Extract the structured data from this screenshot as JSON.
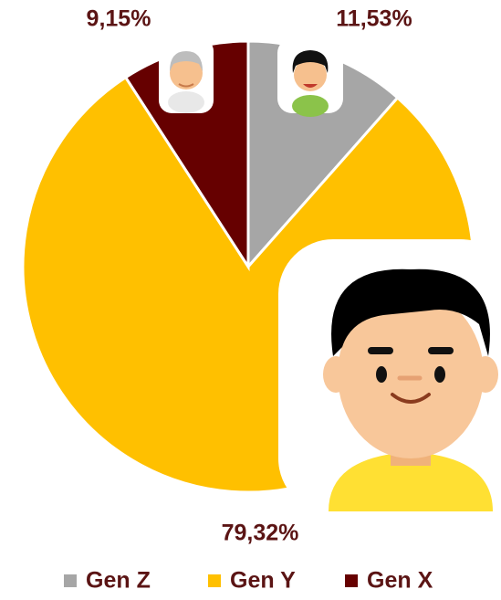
{
  "chart_data": {
    "type": "pie",
    "categories": [
      "Gen Z",
      "Gen Y",
      "Gen X"
    ],
    "values": [
      11.53,
      79.32,
      9.15
    ],
    "value_labels": [
      "11,53%",
      "79,32%",
      "9,15%"
    ],
    "colors": [
      "#a6a6a6",
      "#ffc000",
      "#660000"
    ],
    "start_angle": 0,
    "direction": "clockwise",
    "legend": "bottom"
  }
}
